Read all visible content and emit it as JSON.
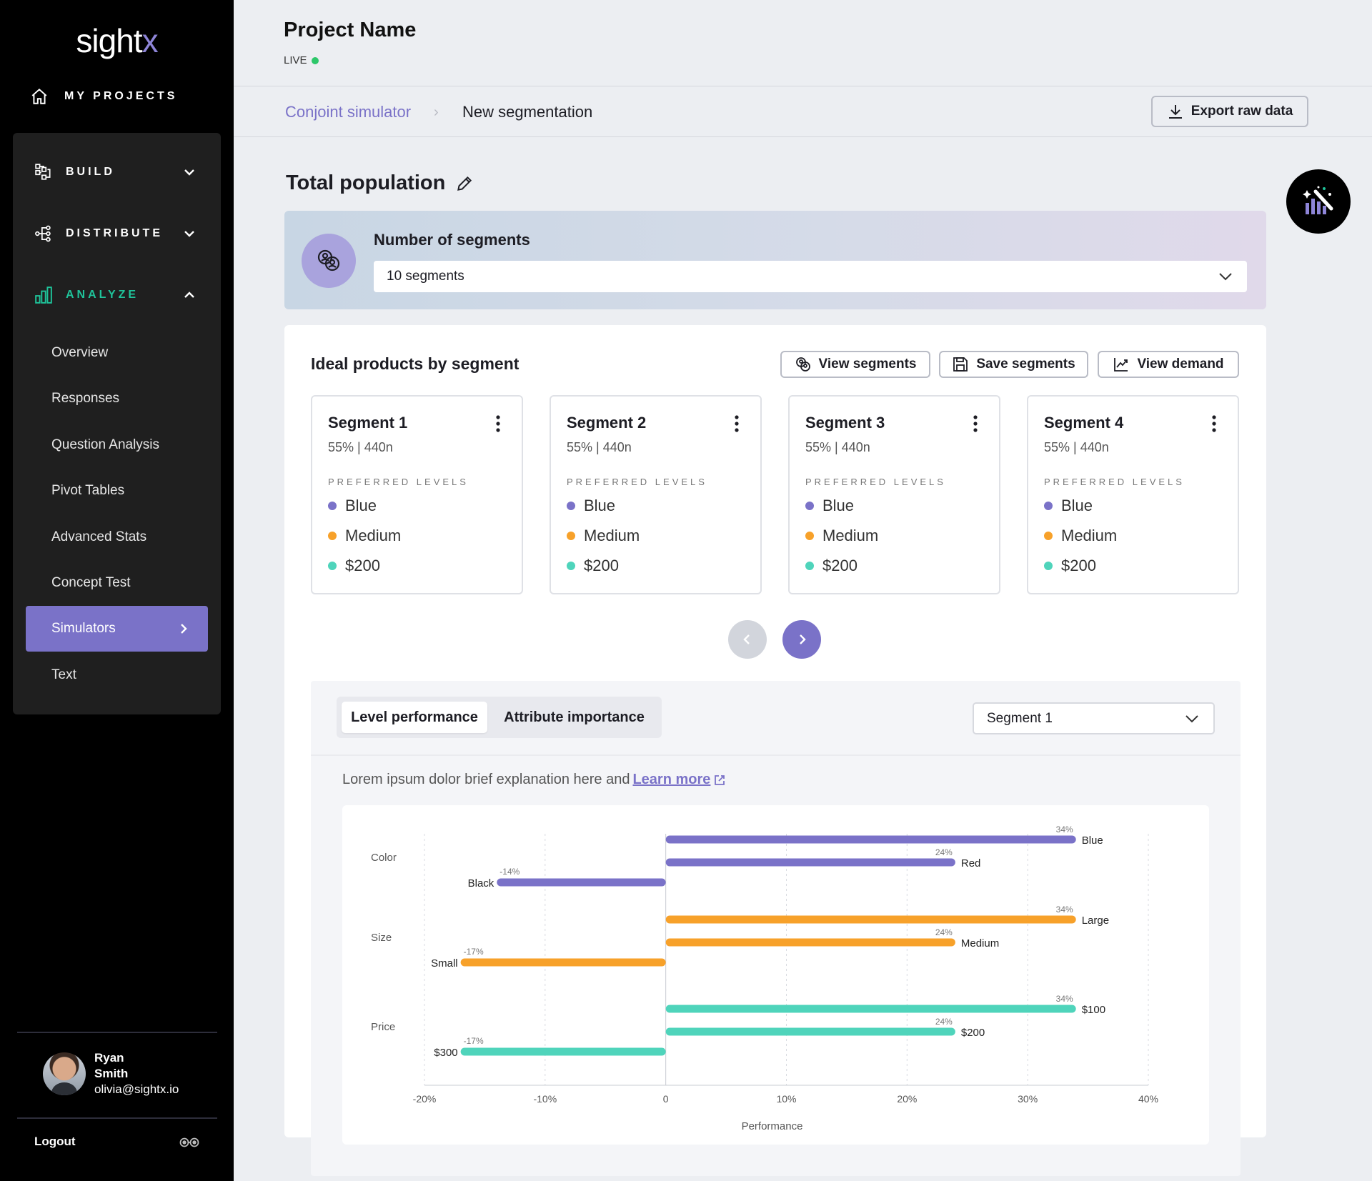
{
  "sidebar": {
    "logo_main": "sight",
    "logo_accent": "x",
    "my_projects": "MY PROJECTS",
    "sections": {
      "build": "BUILD",
      "distribute": "DISTRIBUTE",
      "analyze": "ANALYZE"
    },
    "analyze_items": [
      "Overview",
      "Responses",
      "Question Analysis",
      "Pivot Tables",
      "Advanced Stats",
      "Concept Test",
      "Simulators",
      "Text"
    ],
    "active_item": "Simulators",
    "user": {
      "first": "Ryan",
      "last": "Smith",
      "email": "olivia@sightx.io"
    },
    "logout": "Logout"
  },
  "header": {
    "project_name": "Project Name",
    "status": "LIVE",
    "breadcrumb": [
      "Conjoint simulator",
      "New segmentation"
    ],
    "export_label": "Export raw data"
  },
  "population": {
    "title": "Total population",
    "segments_label": "Number of segments",
    "segments_value": "10 segments"
  },
  "ideal": {
    "title": "Ideal products by segment",
    "buttons": {
      "view_segments": "View segments",
      "save_segments": "Save segments",
      "view_demand": "View demand"
    },
    "preferred_label": "PREFERRED LEVELS",
    "segments": [
      {
        "name": "Segment 1",
        "stat": "55% | 440n",
        "levels": [
          "Blue",
          "Medium",
          "$200"
        ]
      },
      {
        "name": "Segment 2",
        "stat": "55% | 440n",
        "levels": [
          "Blue",
          "Medium",
          "$200"
        ]
      },
      {
        "name": "Segment 3",
        "stat": "55% | 440n",
        "levels": [
          "Blue",
          "Medium",
          "$200"
        ]
      },
      {
        "name": "Segment 4",
        "stat": "55% | 440n",
        "levels": [
          "Blue",
          "Medium",
          "$200"
        ]
      }
    ],
    "level_colors": [
      "#7a72c8",
      "#f7a12a",
      "#4fd4bb"
    ]
  },
  "analysis": {
    "tabs": [
      "Level performance",
      "Attribute importance"
    ],
    "active_tab": "Level performance",
    "segment_select": "Segment 1",
    "explain_text": "Lorem ipsum dolor brief explanation here and",
    "learn_more": "Learn more"
  },
  "chart_data": {
    "type": "bar",
    "orientation": "horizontal",
    "xlabel": "Performance",
    "xlim": [
      -20,
      40
    ],
    "x_ticks": [
      "-20%",
      "-10%",
      "0",
      "10%",
      "20%",
      "30%",
      "40%"
    ],
    "grid": true,
    "groups": [
      {
        "name": "Color",
        "color": "#7a72c8",
        "bars": [
          {
            "label": "Blue",
            "value": 34,
            "value_label": "34%"
          },
          {
            "label": "Red",
            "value": 24,
            "value_label": "24%"
          },
          {
            "label": "Black",
            "value": -14,
            "value_label": "-14%"
          }
        ]
      },
      {
        "name": "Size",
        "color": "#f7a12a",
        "bars": [
          {
            "label": "Large",
            "value": 34,
            "value_label": "34%"
          },
          {
            "label": "Medium",
            "value": 24,
            "value_label": "24%"
          },
          {
            "label": "Small",
            "value": -17,
            "value_label": "-17%"
          }
        ]
      },
      {
        "name": "Price",
        "color": "#4fd4bb",
        "bars": [
          {
            "label": "$100",
            "value": 34,
            "value_label": "34%"
          },
          {
            "label": "$200",
            "value": 24,
            "value_label": "24%"
          },
          {
            "label": "$300",
            "value": -17,
            "value_label": "-17%"
          }
        ]
      }
    ]
  }
}
